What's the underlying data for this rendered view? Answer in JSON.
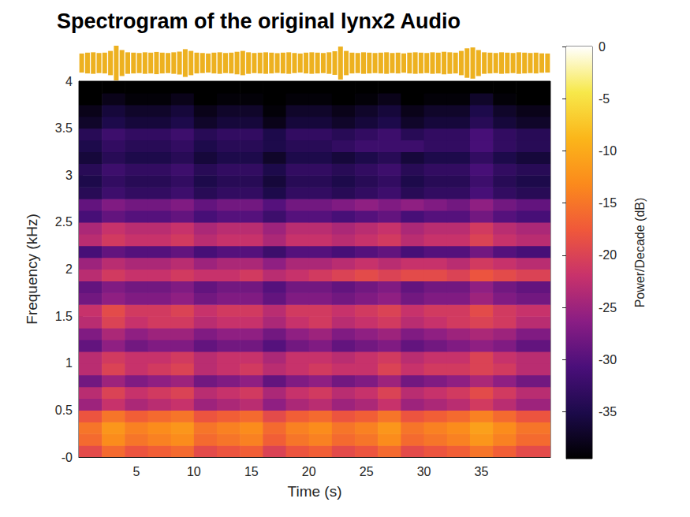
{
  "chart_data": {
    "type": "spectrogram",
    "title": "Spectrogram of the original lynx2 Audio",
    "x_label": "Time (s)",
    "y_label": "Frequency (kHz)",
    "xlim": [
      0,
      41
    ],
    "xticks": [
      5,
      10,
      15,
      20,
      25,
      30,
      35
    ],
    "ylim": [
      0,
      4
    ],
    "yticks": [
      {
        "value": 0,
        "label": "-0"
      },
      0.5,
      1,
      1.5,
      2,
      2.5,
      3,
      3.5,
      4
    ],
    "grid": false,
    "time_edges": [
      0,
      2,
      4,
      6,
      8,
      10,
      12,
      14,
      16,
      18,
      20,
      22,
      24,
      26,
      28,
      30,
      32,
      34,
      36,
      38,
      41
    ],
    "frequency_edges": [
      0,
      0.125,
      0.25,
      0.375,
      0.5,
      0.625,
      0.75,
      0.875,
      1,
      1.125,
      1.25,
      1.375,
      1.5,
      1.625,
      1.75,
      1.875,
      2,
      2.125,
      2.25,
      2.375,
      2.5,
      2.625,
      2.75,
      2.875,
      3,
      3.125,
      3.25,
      3.375,
      3.5,
      3.625,
      3.75,
      3.875,
      4
    ],
    "power_db": [
      [
        -19,
        -16,
        -18,
        -17,
        -16,
        -19,
        -18,
        -17,
        -20,
        -18,
        -17,
        -19,
        -18,
        -16,
        -19,
        -18,
        -17,
        -15,
        -17,
        -19
      ],
      [
        -16,
        -13,
        -15,
        -14,
        -13,
        -16,
        -15,
        -14,
        -17,
        -15,
        -14,
        -16,
        -15,
        -13,
        -16,
        -15,
        -14,
        -12,
        -14,
        -16
      ],
      [
        -15,
        -12,
        -14,
        -13,
        -12,
        -15,
        -14,
        -13,
        -16,
        -14,
        -13,
        -15,
        -14,
        -12,
        -15,
        -14,
        -13,
        -11,
        -13,
        -15
      ],
      [
        -18,
        -15,
        -17,
        -16,
        -15,
        -18,
        -17,
        -16,
        -19,
        -17,
        -16,
        -18,
        -17,
        -15,
        -18,
        -17,
        -16,
        -14,
        -16,
        -18
      ],
      [
        -25,
        -22,
        -24,
        -23,
        -22,
        -25,
        -24,
        -23,
        -26,
        -24,
        -23,
        -25,
        -24,
        -22,
        -25,
        -24,
        -23,
        -21,
        -23,
        -25
      ],
      [
        -23,
        -20,
        -22,
        -21,
        -20,
        -23,
        -22,
        -21,
        -24,
        -22,
        -21,
        -23,
        -22,
        -20,
        -23,
        -22,
        -21,
        -19,
        -21,
        -23
      ],
      [
        -28,
        -25,
        -27,
        -26,
        -25,
        -28,
        -27,
        -26,
        -29,
        -27,
        -26,
        -28,
        -27,
        -25,
        -28,
        -27,
        -26,
        -24,
        -26,
        -28
      ],
      [
        -23,
        -20,
        -22,
        -21,
        -20,
        -23,
        -22,
        -21,
        -23,
        -22,
        -21,
        -22,
        -22,
        -20,
        -22,
        -21,
        -21,
        -20,
        -21,
        -23
      ],
      [
        -23,
        -21,
        -22,
        -22,
        -21,
        -23,
        -22,
        -22,
        -24,
        -22,
        -22,
        -23,
        -22,
        -21,
        -23,
        -22,
        -22,
        -20,
        -22,
        -23
      ],
      [
        -29,
        -26,
        -28,
        -27,
        -27,
        -29,
        -28,
        -28,
        -30,
        -28,
        -27,
        -29,
        -28,
        -27,
        -29,
        -28,
        -27,
        -26,
        -27,
        -29
      ],
      [
        -27,
        -24,
        -26,
        -25,
        -25,
        -27,
        -26,
        -26,
        -28,
        -26,
        -25,
        -27,
        -26,
        -25,
        -27,
        -26,
        -25,
        -24,
        -25,
        -27
      ],
      [
        -23,
        -20,
        -22,
        -21,
        -21,
        -23,
        -22,
        -22,
        -24,
        -22,
        -21,
        -23,
        -22,
        -21,
        -23,
        -22,
        -21,
        -20,
        -21,
        -23
      ],
      [
        -22,
        -19,
        -21,
        -21,
        -20,
        -22,
        -21,
        -21,
        -23,
        -21,
        -21,
        -22,
        -21,
        -20,
        -22,
        -21,
        -21,
        -19,
        -21,
        -22
      ],
      [
        -28,
        -26,
        -27,
        -27,
        -26,
        -28,
        -27,
        -27,
        -29,
        -27,
        -27,
        -28,
        -27,
        -26,
        -28,
        -27,
        -27,
        -25,
        -27,
        -28
      ],
      [
        -29,
        -27,
        -28,
        -28,
        -27,
        -29,
        -28,
        -28,
        -30,
        -28,
        -28,
        -29,
        -28,
        -27,
        -29,
        -28,
        -28,
        -26,
        -28,
        -29
      ],
      [
        -23,
        -21,
        -22,
        -22,
        -21,
        -22,
        -22,
        -21,
        -23,
        -22,
        -21,
        -20,
        -19,
        -20,
        -19,
        -19,
        -20,
        -18,
        -19,
        -20
      ],
      [
        -25,
        -23,
        -24,
        -24,
        -23,
        -25,
        -24,
        -24,
        -26,
        -24,
        -24,
        -23,
        -22,
        -23,
        -22,
        -22,
        -23,
        -21,
        -22,
        -23
      ],
      [
        -31,
        -29,
        -30,
        -30,
        -29,
        -31,
        -30,
        -30,
        -32,
        -30,
        -30,
        -31,
        -30,
        -29,
        -31,
        -30,
        -30,
        -28,
        -30,
        -31
      ],
      [
        -23,
        -21,
        -22,
        -22,
        -21,
        -23,
        -22,
        -22,
        -24,
        -22,
        -22,
        -23,
        -22,
        -21,
        -23,
        -22,
        -22,
        -20,
        -22,
        -23
      ],
      [
        -24,
        -22,
        -23,
        -23,
        -22,
        -24,
        -23,
        -23,
        -25,
        -23,
        -23,
        -24,
        -23,
        -22,
        -24,
        -23,
        -23,
        -21,
        -23,
        -24
      ],
      [
        -31,
        -29,
        -30,
        -30,
        -29,
        -31,
        -30,
        -30,
        -32,
        -30,
        -30,
        -31,
        -30,
        -29,
        -31,
        -30,
        -30,
        -28,
        -30,
        -31
      ],
      [
        -29,
        -27,
        -28,
        -28,
        -27,
        -29,
        -28,
        -28,
        -30,
        -28,
        -28,
        -27,
        -26,
        -27,
        -26,
        -27,
        -28,
        -26,
        -28,
        -29
      ],
      [
        -34,
        -32,
        -33,
        -33,
        -32,
        -34,
        -33,
        -33,
        -35,
        -33,
        -33,
        -34,
        -33,
        -32,
        -34,
        -33,
        -33,
        -31,
        -33,
        -34
      ],
      [
        -35,
        -33,
        -34,
        -34,
        -33,
        -35,
        -34,
        -34,
        -36,
        -34,
        -34,
        -35,
        -34,
        -33,
        -35,
        -34,
        -34,
        -32,
        -34,
        -35
      ],
      [
        -34,
        -32,
        -33,
        -33,
        -32,
        -34,
        -33,
        -33,
        -35,
        -33,
        -33,
        -34,
        -33,
        -32,
        -34,
        -33,
        -33,
        -31,
        -33,
        -34
      ],
      [
        -36,
        -34,
        -35,
        -35,
        -34,
        -36,
        -35,
        -35,
        -37,
        -35,
        -35,
        -36,
        -35,
        -34,
        -36,
        -35,
        -35,
        -33,
        -35,
        -36
      ],
      [
        -35,
        -33,
        -34,
        -34,
        -33,
        -35,
        -34,
        -34,
        -35,
        -34,
        -34,
        -33,
        -32,
        -32,
        -32,
        -33,
        -33,
        -31,
        -33,
        -34
      ],
      [
        -34,
        -32,
        -33,
        -33,
        -32,
        -34,
        -33,
        -33,
        -35,
        -33,
        -33,
        -34,
        -33,
        -32,
        -34,
        -33,
        -33,
        -31,
        -33,
        -34
      ],
      [
        -37,
        -35,
        -36,
        -36,
        -35,
        -37,
        -36,
        -36,
        -38,
        -36,
        -36,
        -37,
        -36,
        -35,
        -37,
        -36,
        -36,
        -34,
        -36,
        -37
      ],
      [
        -38,
        -36,
        -37,
        -37,
        -36,
        -38,
        -37,
        -37,
        -39,
        -37,
        -37,
        -38,
        -37,
        -36,
        -38,
        -37,
        -37,
        -35,
        -37,
        -38
      ],
      [
        -39.5,
        -38,
        -39,
        -39,
        -38,
        -39.5,
        -39,
        -39,
        -39.5,
        -39,
        -39,
        -39.5,
        -39,
        -38,
        -39.5,
        -39,
        -39,
        -37,
        -39,
        -39.5
      ],
      [
        -39.5,
        -39.5,
        -39.5,
        -39.5,
        -39.5,
        -39.5,
        -39.5,
        -39.5,
        -39.5,
        -39.5,
        -39.5,
        -39.5,
        -39.5,
        -39.5,
        -39.5,
        -39.5,
        -39.5,
        -39.5,
        -39.5,
        -39.5
      ]
    ],
    "colorbar_label": "Power/Decade (dB)",
    "clim": [
      -39.5,
      0
    ],
    "cticks": [
      -35,
      -30,
      -25,
      -20,
      -15,
      -10,
      -5,
      0
    ],
    "waveform": {
      "color": "#edb120",
      "ylim": [
        -1,
        1
      ],
      "time": [
        0.25,
        0.75,
        1.25,
        1.75,
        2.25,
        2.75,
        3.25,
        3.75,
        4.25,
        4.75,
        5.25,
        5.75,
        6.25,
        6.75,
        7.25,
        7.75,
        8.25,
        8.75,
        9.25,
        9.75,
        10.25,
        10.75,
        11.25,
        11.75,
        12.25,
        12.75,
        13.25,
        13.75,
        14.25,
        14.75,
        15.25,
        15.75,
        16.25,
        16.75,
        17.25,
        17.75,
        18.25,
        18.75,
        19.25,
        19.75,
        20.25,
        20.75,
        21.25,
        21.75,
        22.25,
        22.75,
        23.25,
        23.75,
        24.25,
        24.75,
        25.25,
        25.75,
        26.25,
        26.75,
        27.25,
        27.75,
        28.25,
        28.75,
        29.25,
        29.75,
        30.25,
        30.75,
        31.25,
        31.75,
        32.25,
        32.75,
        33.25,
        33.75,
        34.25,
        34.75,
        35.25,
        35.75,
        36.25,
        36.75,
        37.25,
        37.75,
        38.25,
        38.75,
        39.25,
        39.75,
        40.25,
        40.75
      ],
      "amplitude": [
        0.55,
        0.6,
        0.62,
        0.58,
        0.6,
        0.7,
        1.0,
        0.75,
        0.62,
        0.6,
        0.58,
        0.62,
        0.6,
        0.64,
        0.6,
        0.58,
        0.62,
        0.66,
        0.8,
        0.7,
        0.6,
        0.58,
        0.55,
        0.6,
        0.62,
        0.58,
        0.6,
        0.65,
        0.7,
        0.62,
        0.58,
        0.6,
        0.62,
        0.6,
        0.57,
        0.6,
        0.62,
        0.58,
        0.55,
        0.6,
        0.62,
        0.6,
        0.58,
        0.62,
        0.68,
        0.95,
        0.7,
        0.6,
        0.58,
        0.62,
        0.6,
        0.58,
        0.6,
        0.62,
        0.58,
        0.6,
        0.56,
        0.6,
        0.62,
        0.6,
        0.58,
        0.62,
        0.6,
        0.65,
        0.62,
        0.6,
        0.7,
        0.85,
        0.9,
        0.75,
        0.62,
        0.6,
        0.58,
        0.62,
        0.6,
        0.58,
        0.62,
        0.6,
        0.58,
        0.6,
        0.56,
        0.55
      ]
    }
  }
}
